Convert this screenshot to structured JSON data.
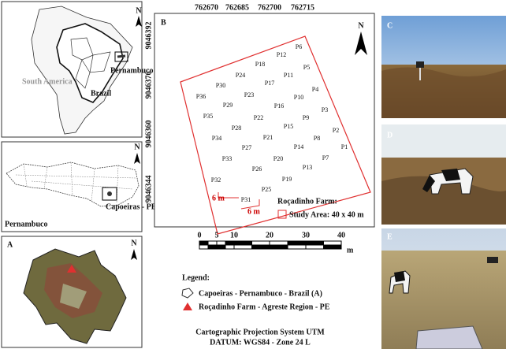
{
  "map_south_america": {
    "north": "N",
    "continent": "South America",
    "country": "Brazil",
    "state": "Pernambuco"
  },
  "map_pernambuco": {
    "north": "N",
    "municipality": "Capoeiras - PE",
    "state": "Pernambuco"
  },
  "map_a": {
    "label": "A",
    "north": "N"
  },
  "map_b": {
    "label": "B",
    "north": "N",
    "x_coords": [
      "762670",
      "762685",
      "762700",
      "762715"
    ],
    "y_coords": [
      "9046392",
      "9046376",
      "9046360",
      "9046344"
    ],
    "points": [
      "P1",
      "P2",
      "P3",
      "P4",
      "P5",
      "P6",
      "P7",
      "P8",
      "P9",
      "P10",
      "P11",
      "P12",
      "P13",
      "P14",
      "P15",
      "P16",
      "P17",
      "P18",
      "P19",
      "P20",
      "P21",
      "P22",
      "P23",
      "P24",
      "P25",
      "P26",
      "P27",
      "P28",
      "P29",
      "P30",
      "P31",
      "P32",
      "P33",
      "P34",
      "P35",
      "P36"
    ],
    "spacing_labels": [
      "6 m",
      "6 m"
    ],
    "farm": "Roçadinho Farm:",
    "study_area": "Study Area: 40 x 40 m",
    "scale": [
      "0",
      "5",
      "10",
      "20",
      "30",
      "40"
    ],
    "scale_unit": "m"
  },
  "legend": {
    "title": "Legend:",
    "items": [
      "Capoeiras - Pernambuco - Brazil (A)",
      "Roçadinho Farm - Agreste Region - PE"
    ]
  },
  "projection": [
    "Cartographic Projection System UTM",
    "DATUM: WGS84 - Zone 24 L"
  ],
  "photos": [
    "C",
    "D",
    "E"
  ]
}
